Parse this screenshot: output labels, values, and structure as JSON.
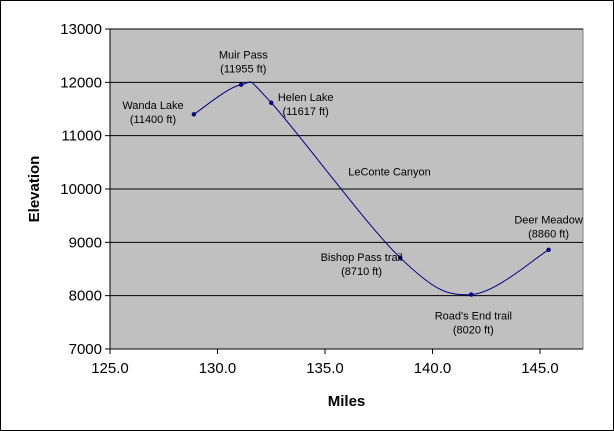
{
  "chart_data": {
    "type": "line",
    "title": "",
    "xlabel": "Miles",
    "ylabel": "Elevation",
    "xlim": [
      125.0,
      147.0
    ],
    "ylim": [
      7000,
      13000
    ],
    "x_ticks": [
      125.0,
      130.0,
      135.0,
      140.0,
      145.0
    ],
    "y_ticks": [
      7000,
      8000,
      9000,
      10000,
      11000,
      12000,
      13000
    ],
    "grid": "horizontal",
    "legend": "none",
    "plot_background": "#c0c0c0",
    "series_color": "#000080",
    "gridline_color": "#000000",
    "series": [
      {
        "x": [
          128.9,
          131.1,
          132.5,
          138.5,
          141.8,
          145.4
        ],
        "y": [
          11400,
          11955,
          11617,
          8710,
          8020,
          8860
        ]
      }
    ],
    "annotations": [
      {
        "lines": [
          "Wanda Lake",
          "(11400 ft)"
        ],
        "x": 127.0,
        "y": 11500,
        "align": "middle"
      },
      {
        "lines": [
          "Muir Pass",
          "(11955 ft)"
        ],
        "x": 131.2,
        "y": 12450,
        "align": "middle"
      },
      {
        "lines": [
          "Helen Lake",
          "(11617 ft)"
        ],
        "x": 134.1,
        "y": 11650,
        "align": "middle"
      },
      {
        "lines": [
          "LeConte Canyon"
        ],
        "x": 138.0,
        "y": 10250,
        "align": "middle"
      },
      {
        "lines": [
          "Bishop Pass trail",
          "(8710 ft)"
        ],
        "x": 136.7,
        "y": 8650,
        "align": "middle"
      },
      {
        "lines": [
          "Road's End trail",
          "(8020 ft)"
        ],
        "x": 141.9,
        "y": 7550,
        "align": "middle"
      },
      {
        "lines": [
          "Deer Meadow",
          "(8860 ft)"
        ],
        "x": 145.4,
        "y": 9350,
        "align": "middle"
      }
    ]
  }
}
